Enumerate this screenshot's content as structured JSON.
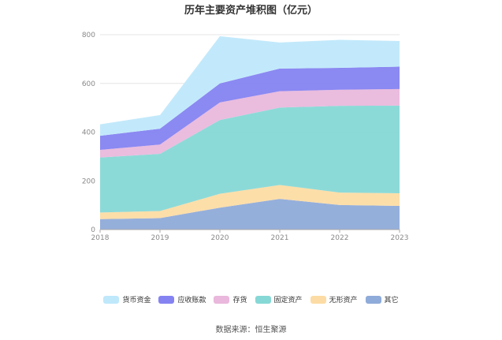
{
  "title": "历年主要资产堆积图（亿元）",
  "source": "数据来源：恒生聚源",
  "chart_data": {
    "type": "area",
    "stacked": true,
    "title": "历年主要资产堆积图（亿元）",
    "x": [
      "2018",
      "2019",
      "2020",
      "2021",
      "2022",
      "2023"
    ],
    "ylim": [
      0,
      800
    ],
    "yticks": [
      0,
      200,
      400,
      600,
      800
    ],
    "grid": true,
    "legend_position": "bottom",
    "series": [
      {
        "name": "其它",
        "color": "#8fabd9",
        "values": [
          43,
          47,
          90,
          126,
          101,
          97
        ]
      },
      {
        "name": "无形资产",
        "color": "#fcdca4",
        "values": [
          27,
          29,
          57,
          57,
          51,
          52
        ]
      },
      {
        "name": "固定资产",
        "color": "#86d8d6",
        "values": [
          226,
          235,
          303,
          318,
          356,
          360
        ]
      },
      {
        "name": "存货",
        "color": "#e9b8dc",
        "values": [
          31,
          38,
          72,
          67,
          66,
          68
        ]
      },
      {
        "name": "应收账款",
        "color": "#8583f1",
        "values": [
          58,
          65,
          78,
          93,
          90,
          92
        ]
      },
      {
        "name": "货币资金",
        "color": "#bfe8fb",
        "values": [
          47,
          56,
          194,
          107,
          115,
          105
        ]
      }
    ]
  },
  "legend": [
    {
      "label": "货币资金",
      "color": "#bfe8fb"
    },
    {
      "label": "应收账款",
      "color": "#8583f1"
    },
    {
      "label": "存货",
      "color": "#e9b8dc"
    },
    {
      "label": "固定资产",
      "color": "#86d8d6"
    },
    {
      "label": "无形资产",
      "color": "#fcdca4"
    },
    {
      "label": "其它",
      "color": "#8fabd9"
    }
  ]
}
